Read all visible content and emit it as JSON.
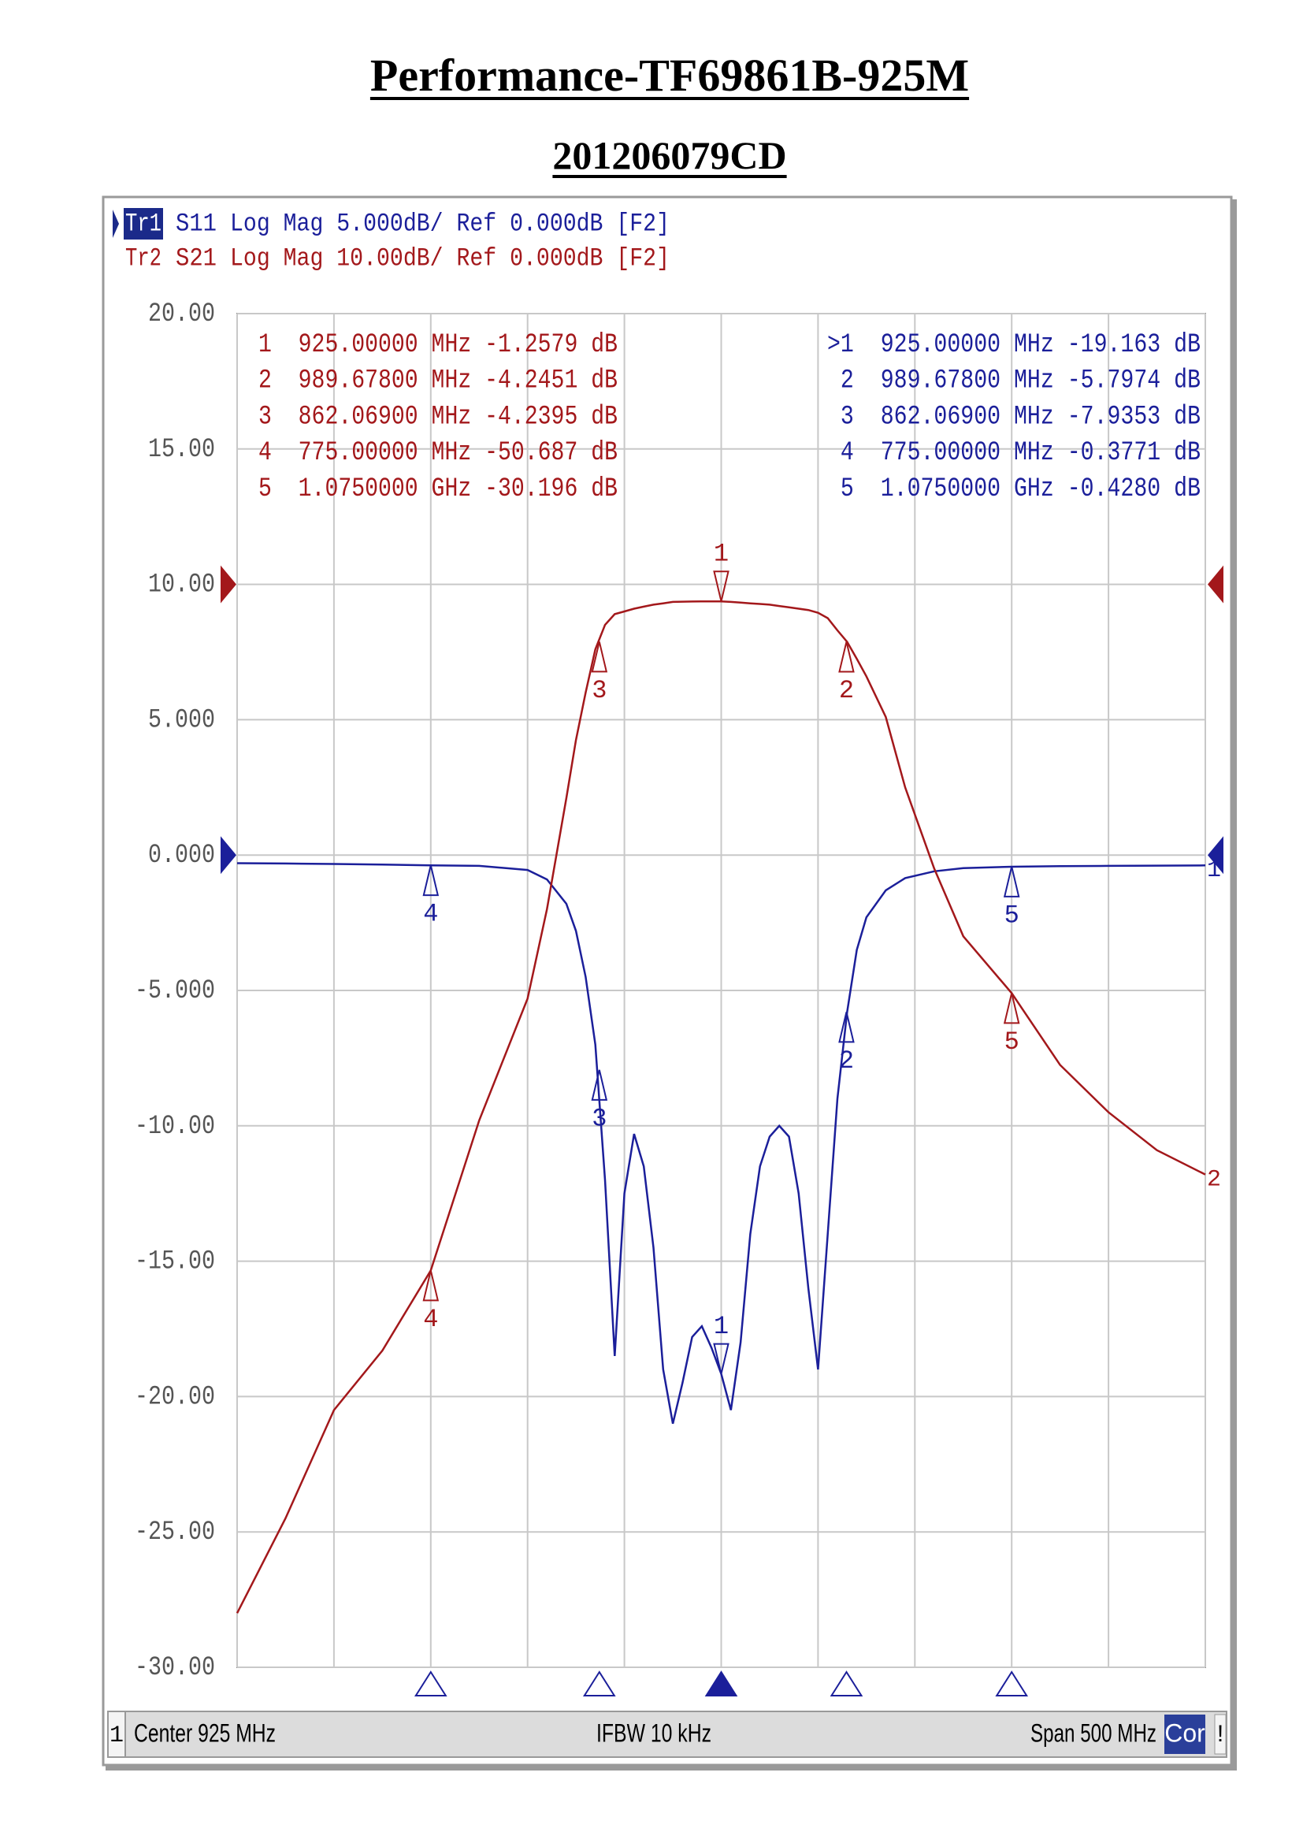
{
  "chart_data": {
    "type": "line",
    "title": "Performance-TF69861B-925M",
    "subtitle": "201206079CD",
    "header": {
      "active": "Tr1",
      "inactive": "Tr2",
      "line1": "Log Mag 5.000dB/ Ref 0.000dB [F2]",
      "line2": "Log Mag 10.00dB/ Ref 0.000dB [F2]"
    },
    "x": [
      675,
      700,
      725,
      750,
      775,
      800,
      825,
      835,
      845,
      850,
      855,
      860,
      865,
      870,
      875,
      880,
      885,
      890,
      895,
      900,
      905,
      910,
      915,
      920,
      925,
      930,
      935,
      940,
      945,
      950,
      955,
      960,
      965,
      970,
      975,
      980,
      985,
      990,
      995,
      1000,
      1010,
      1020,
      1035,
      1050,
      1075,
      1100,
      1125,
      1150,
      1175
    ],
    "xlim": [
      675,
      1175
    ],
    "xticks": [
      675,
      725,
      775,
      825,
      875,
      925,
      975,
      1025,
      1075,
      1125,
      1175
    ],
    "ylim": [
      -30,
      20
    ],
    "yticks": [
      {
        "value": 20,
        "label": "20.00"
      },
      {
        "value": 15,
        "label": "15.00"
      },
      {
        "value": 10,
        "label": "10.00"
      },
      {
        "value": 5,
        "label": "5.000"
      },
      {
        "value": 0,
        "label": "0.000"
      },
      {
        "value": -5,
        "label": "-5.000"
      },
      {
        "value": -10,
        "label": "-10.00"
      },
      {
        "value": -15,
        "label": "-15.00"
      },
      {
        "value": -20,
        "label": "-20.00"
      },
      {
        "value": -25,
        "label": "-25.00"
      },
      {
        "value": -30,
        "label": "-30.00"
      }
    ],
    "y2lim": [
      -80,
      20
    ],
    "grid": true,
    "series": [
      {
        "name": "S11",
        "trace": "1",
        "color": "#1b1f9a",
        "ref": 0,
        "values": [
          -0.3,
          -0.31,
          -0.33,
          -0.35,
          -0.38,
          -0.4,
          -0.55,
          -0.9,
          -1.8,
          -2.8,
          -4.5,
          -7.0,
          -12.0,
          -18.5,
          -12.5,
          -10.3,
          -11.5,
          -14.5,
          -19.0,
          -21.0,
          -19.5,
          -17.8,
          -17.4,
          -18.2,
          -19.163,
          -20.5,
          -18.0,
          -14.0,
          -11.5,
          -10.4,
          -10.0,
          -10.4,
          -12.5,
          -16.0,
          -19.0,
          -14.0,
          -9.0,
          -5.8,
          -3.5,
          -2.3,
          -1.3,
          -0.85,
          -0.6,
          -0.48,
          -0.43,
          -0.41,
          -0.4,
          -0.39,
          -0.38
        ]
      },
      {
        "name": "S21",
        "trace": "2",
        "color": "#a3181b",
        "axis": "y2",
        "ref": 0,
        "values": [
          -76,
          -69,
          -61,
          -56.6,
          -50.687,
          -39.6,
          -30.6,
          -24,
          -15.8,
          -11.5,
          -8.0,
          -4.8,
          -3.0,
          -2.2,
          -2.0,
          -1.8,
          -1.65,
          -1.5,
          -1.4,
          -1.3,
          -1.28,
          -1.27,
          -1.26,
          -1.26,
          -1.2579,
          -1.3,
          -1.35,
          -1.4,
          -1.45,
          -1.5,
          -1.6,
          -1.7,
          -1.8,
          -1.9,
          -2.1,
          -2.5,
          -3.4,
          -4.25,
          -5.5,
          -6.8,
          -9.8,
          -15,
          -21,
          -26,
          -30.196,
          -35.5,
          -39,
          -41.8,
          -43.6
        ]
      }
    ],
    "markers": [
      {
        "label": "1",
        "x": 925,
        "s11": -19.163,
        "s21": -1.2579
      },
      {
        "label": "2",
        "x": 989.678,
        "s11": -5.7974,
        "s21": -4.2451
      },
      {
        "label": "3",
        "x": 862.069,
        "s11": -7.9353,
        "s21": -4.2395
      },
      {
        "label": "4",
        "x": 775,
        "s11": -0.3771,
        "s21": -50.687
      },
      {
        "label": "5",
        "x": 1075,
        "s11": -0.428,
        "s21": -30.196
      }
    ],
    "marker_table_s21": [
      "1  925.00000 MHz -1.2579 dB",
      "2  989.67800 MHz -4.2451 dB",
      "3  862.06900 MHz -4.2395 dB",
      "4  775.00000 MHz -50.687 dB",
      "5  1.0750000 GHz -30.196 dB"
    ],
    "marker_table_s11": [
      ">1  925.00000 MHz -19.163 dB",
      " 2  989.67800 MHz -5.7974 dB",
      " 3  862.06900 MHz -7.9353 dB",
      " 4  775.00000 MHz -0.3771 dB",
      " 5  1.0750000 GHz -0.4280 dB"
    ],
    "footer": {
      "channel": "1",
      "center": "Center 925 MHz",
      "ifbw": "IFBW 10 kHz",
      "span": "Span 500 MHz",
      "cor": "Cor",
      "flag": "!"
    }
  }
}
